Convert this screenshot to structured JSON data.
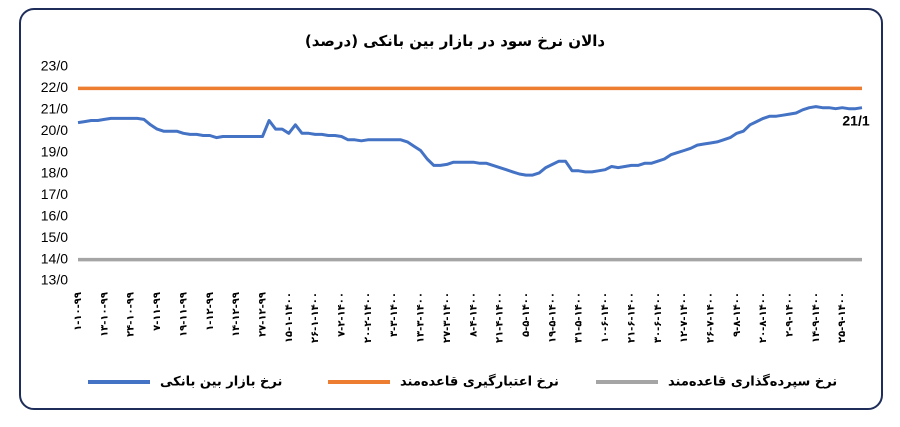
{
  "chart_data": {
    "type": "line",
    "title": "دالان نرخ سود در بازار بین بانکی (درصد)",
    "ylim": [
      13,
      23
    ],
    "yticks": [
      {
        "value": 13,
        "label": "13/0"
      },
      {
        "value": 14,
        "label": "14/0"
      },
      {
        "value": 15,
        "label": "15/0"
      },
      {
        "value": 16,
        "label": "16/0"
      },
      {
        "value": 17,
        "label": "17/0"
      },
      {
        "value": 18,
        "label": "18/0"
      },
      {
        "value": 19,
        "label": "19/0"
      },
      {
        "value": 20,
        "label": "20/0"
      },
      {
        "value": 21,
        "label": "21/0"
      },
      {
        "value": 22,
        "label": "22/0"
      },
      {
        "value": 23,
        "label": "23/0"
      }
    ],
    "grid": false,
    "legend": "bottom",
    "categories": [
      "۱-۱۰-۹۹",
      null,
      null,
      null,
      "۱۳-۱۰-۹۹",
      null,
      null,
      null,
      "۲۴-۱۰-۹۹",
      null,
      null,
      null,
      "۷-۱۱-۹۹",
      null,
      null,
      null,
      "۱۹-۱۱-۹۹",
      null,
      null,
      null,
      "۱-۱۲-۹۹",
      null,
      null,
      null,
      "۱۴-۱۲-۹۹",
      null,
      null,
      null,
      "۲۷-۱۲-۹۹",
      null,
      null,
      null,
      "۱۵-۱-۱۴۰۰",
      null,
      null,
      null,
      "۲۶-۱-۱۴۰۰",
      null,
      null,
      null,
      "۷-۲-۱۴۰۰",
      null,
      null,
      null,
      "۲۰-۲-۱۴۰۰",
      null,
      null,
      null,
      "۳-۳-۱۴۰۰",
      null,
      null,
      null,
      "۱۳-۳-۱۴۰۰",
      null,
      null,
      null,
      "۲۷-۳-۱۴۰۰",
      null,
      null,
      null,
      "۸-۴-۱۴۰۰",
      null,
      null,
      null,
      "۲۱-۴-۱۴۰۰",
      null,
      null,
      null,
      "۵-۵-۱۴۰۰",
      null,
      null,
      null,
      "۱۹-۵-۱۴۰۰",
      null,
      null,
      null,
      "۳۱-۵-۱۴۰۰",
      null,
      null,
      null,
      "۱۰-۶-۱۴۰۰",
      null,
      null,
      null,
      "۲۱-۶-۱۴۰۰",
      null,
      null,
      null,
      "۳۰-۶-۱۴۰۰",
      null,
      null,
      null,
      "۱۲-۷-۱۴۰۰",
      null,
      null,
      null,
      "۲۶-۷-۱۴۰۰",
      null,
      null,
      null,
      "۹-۸-۱۴۰۰",
      null,
      null,
      null,
      "۲۰-۸-۱۴۰۰",
      null,
      null,
      null,
      "۲-۹-۱۴۰۰",
      null,
      null,
      null,
      "۱۴-۹-۱۴۰۰",
      null,
      null,
      null,
      "۲۵-۹-۱۴۰۰",
      null,
      null,
      null
    ],
    "series": [
      {
        "name": "نرخ بازار بین بانکی",
        "color": "#4472c4",
        "values": [
          20.4,
          20.45,
          20.5,
          20.5,
          20.55,
          20.6,
          20.6,
          20.6,
          20.6,
          20.6,
          20.55,
          20.3,
          20.1,
          20.0,
          20.0,
          20.0,
          19.9,
          19.85,
          19.85,
          19.8,
          19.8,
          19.7,
          19.75,
          19.75,
          19.75,
          19.75,
          19.75,
          19.75,
          19.75,
          20.5,
          20.1,
          20.1,
          19.9,
          20.3,
          19.9,
          19.9,
          19.85,
          19.85,
          19.8,
          19.8,
          19.75,
          19.6,
          19.6,
          19.55,
          19.6,
          19.6,
          19.6,
          19.6,
          19.6,
          19.6,
          19.5,
          19.3,
          19.1,
          18.7,
          18.4,
          18.4,
          18.45,
          18.55,
          18.55,
          18.55,
          18.55,
          18.5,
          18.5,
          18.4,
          18.3,
          18.2,
          18.1,
          18.0,
          17.95,
          17.95,
          18.05,
          18.3,
          18.45,
          18.6,
          18.6,
          18.15,
          18.15,
          18.1,
          18.1,
          18.15,
          18.2,
          18.35,
          18.3,
          18.35,
          18.4,
          18.4,
          18.5,
          18.5,
          18.6,
          18.7,
          18.9,
          19.0,
          19.1,
          19.2,
          19.35,
          19.4,
          19.45,
          19.5,
          19.6,
          19.7,
          19.9,
          20.0,
          20.3,
          20.45,
          20.6,
          20.7,
          20.7,
          20.75,
          20.8,
          20.85,
          21.0,
          21.1,
          21.15,
          21.1,
          21.1,
          21.05,
          21.1,
          21.05,
          21.05,
          21.1
        ],
        "value_labels": [
          null,
          null,
          null,
          null,
          null,
          null,
          null,
          null,
          null,
          null,
          null,
          null,
          null,
          null,
          null,
          null,
          null,
          null,
          null,
          null,
          null,
          null,
          null,
          null,
          null,
          null,
          null,
          null,
          null,
          null,
          null,
          null,
          null,
          null,
          null,
          null,
          null,
          null,
          null,
          null,
          null,
          null,
          null,
          null,
          null,
          null,
          null,
          null,
          null,
          null,
          null,
          null,
          null,
          null,
          null,
          null,
          null,
          null,
          null,
          null,
          null,
          null,
          null,
          null,
          null,
          null,
          null,
          null,
          null,
          null,
          null,
          null,
          null,
          null,
          null,
          null,
          null,
          null,
          null,
          null,
          null,
          null,
          null,
          null,
          null,
          null,
          null,
          null,
          null,
          null,
          null,
          null,
          null,
          null,
          null,
          null,
          null,
          null,
          null,
          null,
          null,
          null,
          null,
          null,
          null,
          null,
          null,
          null,
          null,
          null,
          null,
          null,
          null,
          null,
          null,
          null,
          null,
          null,
          null,
          "21/1"
        ]
      },
      {
        "name": "نرخ اعتبارگیری قاعده‌مند",
        "color": "#ed7d31",
        "values": [
          22,
          22,
          22,
          22,
          22,
          22,
          22,
          22,
          22,
          22,
          22,
          22,
          22,
          22,
          22,
          22,
          22,
          22,
          22,
          22,
          22,
          22,
          22,
          22,
          22,
          22,
          22,
          22,
          22,
          22,
          22,
          22,
          22,
          22,
          22,
          22,
          22,
          22,
          22,
          22,
          22,
          22,
          22,
          22,
          22,
          22,
          22,
          22,
          22,
          22,
          22,
          22,
          22,
          22,
          22,
          22,
          22,
          22,
          22,
          22,
          22,
          22,
          22,
          22,
          22,
          22,
          22,
          22,
          22,
          22,
          22,
          22,
          22,
          22,
          22,
          22,
          22,
          22,
          22,
          22,
          22,
          22,
          22,
          22,
          22,
          22,
          22,
          22,
          22,
          22,
          22,
          22,
          22,
          22,
          22,
          22,
          22,
          22,
          22,
          22,
          22,
          22,
          22,
          22,
          22,
          22,
          22,
          22,
          22,
          22,
          22,
          22,
          22,
          22,
          22,
          22,
          22,
          22,
          22,
          22
        ]
      },
      {
        "name": "نرخ سپرده‌گذاری قاعده‌مند",
        "color": "#a5a5a5",
        "values": [
          14,
          14,
          14,
          14,
          14,
          14,
          14,
          14,
          14,
          14,
          14,
          14,
          14,
          14,
          14,
          14,
          14,
          14,
          14,
          14,
          14,
          14,
          14,
          14,
          14,
          14,
          14,
          14,
          14,
          14,
          14,
          14,
          14,
          14,
          14,
          14,
          14,
          14,
          14,
          14,
          14,
          14,
          14,
          14,
          14,
          14,
          14,
          14,
          14,
          14,
          14,
          14,
          14,
          14,
          14,
          14,
          14,
          14,
          14,
          14,
          14,
          14,
          14,
          14,
          14,
          14,
          14,
          14,
          14,
          14,
          14,
          14,
          14,
          14,
          14,
          14,
          14,
          14,
          14,
          14,
          14,
          14,
          14,
          14,
          14,
          14,
          14,
          14,
          14,
          14,
          14,
          14,
          14,
          14,
          14,
          14,
          14,
          14,
          14,
          14,
          14,
          14,
          14,
          14,
          14,
          14,
          14,
          14,
          14,
          14,
          14,
          14,
          14,
          14,
          14,
          14,
          14,
          14,
          14,
          14
        ]
      }
    ]
  }
}
